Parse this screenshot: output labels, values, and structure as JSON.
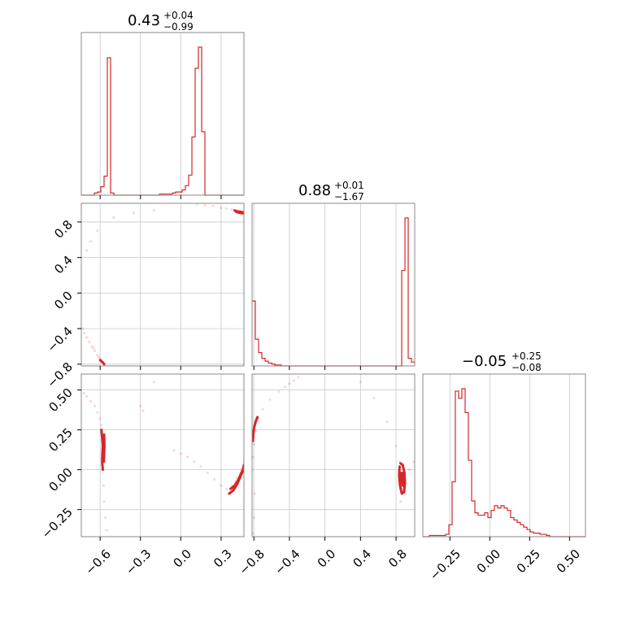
{
  "chart_data": {
    "type": "corner",
    "color": "#d62728",
    "parameters": [
      {
        "median": "0.43",
        "upper": "+0.04",
        "lower": "−0.99",
        "range": [
          -0.74,
          0.47
        ],
        "ticks": [
          -0.6,
          -0.3,
          0.0,
          0.3
        ],
        "tick_labels": [
          "−0.6",
          "−0.3",
          "0.0",
          "0.3"
        ],
        "histogram": {
          "edges_start": -0.74,
          "bin_width": 0.0242,
          "counts": [
            0,
            0,
            0,
            0,
            2,
            3,
            8,
            18,
            130,
            2,
            0,
            0,
            0,
            0,
            0,
            0,
            0,
            0,
            0,
            0,
            0,
            0,
            0,
            0,
            1,
            1,
            1,
            1,
            2,
            3,
            3,
            5,
            9,
            19,
            55,
            120,
            140,
            60,
            0,
            0,
            0,
            0,
            0,
            0,
            0,
            0,
            0,
            0,
            0,
            0
          ]
        }
      },
      {
        "median": "0.88",
        "upper": "+0.01",
        "lower": "−1.67",
        "range": [
          -0.82,
          1.01
        ],
        "ticks": [
          -0.8,
          -0.4,
          0.0,
          0.4,
          0.8
        ],
        "tick_labels": [
          "−0.8",
          "−0.4",
          "0.0",
          "0.4",
          "0.8"
        ],
        "histogram": {
          "edges_start": -0.82,
          "bin_width": 0.0366,
          "counts": [
            68,
            28,
            14,
            8,
            5,
            3,
            2,
            1,
            1,
            0,
            0,
            0,
            0,
            0,
            0,
            0,
            0,
            0,
            0,
            0,
            0,
            0,
            0,
            0,
            0,
            0,
            0,
            0,
            0,
            0,
            0,
            0,
            0,
            0,
            0,
            0,
            0,
            0,
            0,
            0,
            0,
            0,
            0,
            0,
            0,
            0,
            100,
            155,
            8,
            4
          ]
        }
      },
      {
        "median": "−0.05",
        "upper": "+0.25",
        "lower": "−0.08",
        "range": [
          -0.42,
          0.6
        ],
        "ticks": [
          -0.25,
          0.0,
          0.25,
          0.5
        ],
        "tick_labels": [
          "−0.25",
          "0.00",
          "0.25",
          "0.50"
        ],
        "histogram": {
          "edges_start": -0.42,
          "bin_width": 0.0204,
          "counts": [
            0,
            0,
            1,
            1,
            1,
            1,
            1,
            2,
            10,
            46,
            122,
            116,
            124,
            104,
            64,
            30,
            20,
            18,
            18,
            20,
            16,
            22,
            26,
            24,
            26,
            24,
            22,
            16,
            14,
            12,
            10,
            8,
            6,
            4,
            3,
            3,
            2,
            2,
            1,
            0,
            0,
            0,
            0,
            0,
            0,
            0,
            0,
            0,
            0,
            0
          ]
        }
      }
    ],
    "pairs": [
      {
        "row": 1,
        "col": 0,
        "points": [
          [
            -0.73,
            -0.4
          ],
          [
            -0.72,
            -0.45
          ],
          [
            -0.7,
            -0.5
          ],
          [
            -0.68,
            -0.55
          ],
          [
            -0.66,
            -0.6
          ],
          [
            -0.64,
            -0.65
          ],
          [
            -0.62,
            -0.7
          ],
          [
            -0.6,
            -0.74
          ],
          [
            -0.58,
            -0.78
          ],
          [
            -0.57,
            -0.8
          ],
          [
            -0.59,
            -0.76
          ],
          [
            -0.61,
            -0.72
          ],
          [
            -0.65,
            -0.62
          ],
          [
            -0.7,
            0.48
          ],
          [
            -0.67,
            0.58
          ],
          [
            -0.62,
            0.7
          ],
          [
            -0.5,
            0.85
          ],
          [
            -0.35,
            0.9
          ],
          [
            -0.2,
            0.93
          ],
          [
            0.12,
            1.0
          ],
          [
            0.18,
            0.99
          ],
          [
            0.24,
            0.98
          ],
          [
            0.3,
            0.96
          ],
          [
            0.34,
            0.95
          ],
          [
            0.38,
            0.94
          ],
          [
            0.4,
            0.93
          ],
          [
            0.42,
            0.92
          ],
          [
            0.44,
            0.91
          ],
          [
            0.46,
            0.9
          ]
        ],
        "contours": [
          [
            [
              -0.6,
              -0.755
            ],
            [
              -0.585,
              -0.775
            ],
            [
              -0.575,
              -0.79
            ],
            [
              -0.57,
              -0.8
            ]
          ],
          [
            [
              0.4,
              0.93
            ],
            [
              0.42,
              0.92
            ],
            [
              0.44,
              0.915
            ],
            [
              0.46,
              0.91
            ],
            [
              0.47,
              0.905
            ]
          ],
          [
            [
              0.41,
              0.915
            ],
            [
              0.43,
              0.905
            ],
            [
              0.45,
              0.9
            ],
            [
              0.47,
              0.895
            ]
          ]
        ]
      },
      {
        "row": 2,
        "col": 0,
        "points": [
          [
            -0.72,
            0.48
          ],
          [
            -0.7,
            0.46
          ],
          [
            -0.67,
            0.43
          ],
          [
            -0.64,
            0.4
          ],
          [
            -0.62,
            0.36
          ],
          [
            -0.6,
            0.32
          ],
          [
            -0.59,
            0.28
          ],
          [
            -0.58,
            0.2
          ],
          [
            -0.585,
            0.1
          ],
          [
            -0.58,
            0.0
          ],
          [
            -0.575,
            -0.1
          ],
          [
            -0.57,
            -0.2
          ],
          [
            -0.56,
            -0.3
          ],
          [
            -0.55,
            -0.38
          ],
          [
            -0.2,
            0.55
          ],
          [
            -0.3,
            0.4
          ],
          [
            -0.28,
            0.37
          ],
          [
            -0.05,
            0.12
          ],
          [
            0.0,
            0.1
          ],
          [
            0.05,
            0.08
          ],
          [
            0.1,
            0.05
          ],
          [
            0.15,
            0.02
          ],
          [
            0.2,
            -0.02
          ],
          [
            0.25,
            -0.06
          ],
          [
            0.3,
            -0.1
          ],
          [
            0.34,
            -0.12
          ],
          [
            0.38,
            -0.1
          ],
          [
            0.42,
            -0.05
          ],
          [
            0.45,
            0.0
          ],
          [
            0.47,
            0.05
          ]
        ],
        "contours": [
          [
            [
              -0.59,
              0.25
            ],
            [
              -0.585,
              0.2
            ],
            [
              -0.58,
              0.15
            ],
            [
              -0.583,
              0.1
            ],
            [
              -0.585,
              0.05
            ],
            [
              -0.58,
              0.0
            ]
          ],
          [
            [
              -0.57,
              0.22
            ],
            [
              -0.568,
              0.15
            ],
            [
              -0.57,
              0.1
            ],
            [
              -0.572,
              0.05
            ]
          ],
          [
            [
              0.36,
              -0.15
            ],
            [
              0.39,
              -0.13
            ],
            [
              0.42,
              -0.09
            ],
            [
              0.44,
              -0.05
            ],
            [
              0.46,
              -0.01
            ],
            [
              0.47,
              0.03
            ]
          ],
          [
            [
              0.37,
              -0.12
            ],
            [
              0.4,
              -0.1
            ],
            [
              0.43,
              -0.06
            ],
            [
              0.45,
              -0.02
            ],
            [
              0.47,
              0.01
            ]
          ]
        ]
      },
      {
        "row": 2,
        "col": 1,
        "points": [
          [
            -0.82,
            0.0
          ],
          [
            -0.81,
            0.08
          ],
          [
            -0.8,
            0.16
          ],
          [
            -0.78,
            0.24
          ],
          [
            -0.75,
            0.32
          ],
          [
            -0.7,
            0.38
          ],
          [
            -0.62,
            0.44
          ],
          [
            -0.52,
            0.49
          ],
          [
            -0.45,
            0.52
          ],
          [
            -0.4,
            0.54
          ],
          [
            -0.35,
            0.56
          ],
          [
            -0.3,
            0.58
          ],
          [
            -0.79,
            -0.15
          ],
          [
            -0.8,
            -0.3
          ],
          [
            -0.81,
            -0.4
          ],
          [
            0.4,
            0.55
          ],
          [
            0.55,
            0.45
          ],
          [
            0.7,
            0.3
          ],
          [
            0.8,
            0.15
          ],
          [
            0.84,
            0.05
          ],
          [
            0.86,
            -0.05
          ],
          [
            0.88,
            -0.12
          ],
          [
            0.9,
            -0.08
          ],
          [
            0.95,
            0.0
          ],
          [
            1.0,
            0.05
          ],
          [
            0.9,
            -0.15
          ],
          [
            0.85,
            -0.2
          ]
        ],
        "contours": [
          [
            [
              -0.81,
              0.18
            ],
            [
              -0.805,
              0.23
            ],
            [
              -0.795,
              0.27
            ],
            [
              -0.78,
              0.3
            ],
            [
              -0.76,
              0.33
            ]
          ],
          [
            [
              0.84,
              0.02
            ],
            [
              0.835,
              -0.04
            ],
            [
              0.845,
              -0.1
            ],
            [
              0.865,
              -0.15
            ],
            [
              0.89,
              -0.14
            ],
            [
              0.9,
              -0.08
            ],
            [
              0.895,
              -0.02
            ],
            [
              0.875,
              0.03
            ],
            [
              0.85,
              0.04
            ]
          ],
          [
            [
              0.855,
              -0.02
            ],
            [
              0.86,
              -0.07
            ],
            [
              0.875,
              -0.1
            ],
            [
              0.885,
              -0.06
            ],
            [
              0.875,
              -0.02
            ]
          ]
        ]
      }
    ]
  }
}
